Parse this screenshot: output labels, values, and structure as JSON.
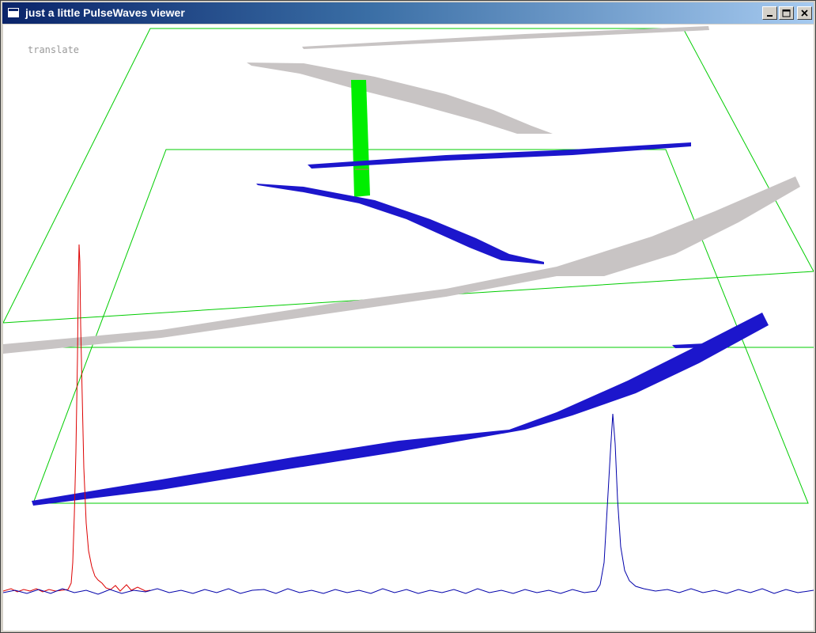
{
  "window": {
    "title": "just a little PulseWaves viewer",
    "controls": [
      "minimize",
      "maximize",
      "close"
    ]
  },
  "viewer": {
    "mode_label": "translate",
    "colors": {
      "background": "#ffffff",
      "bounding_box": "#00cc00",
      "pulse_gray": "#c8c4c4",
      "pulse_blue": "#1c16cc",
      "selected_pulse": "#00ee00",
      "waveform_outgoing": "#dd0000",
      "waveform_returning": "#0000aa"
    },
    "icons": {
      "window_icon": "window-icon",
      "minimize": "minimize-icon",
      "maximize": "maximize-icon",
      "close": "close-icon"
    }
  }
}
